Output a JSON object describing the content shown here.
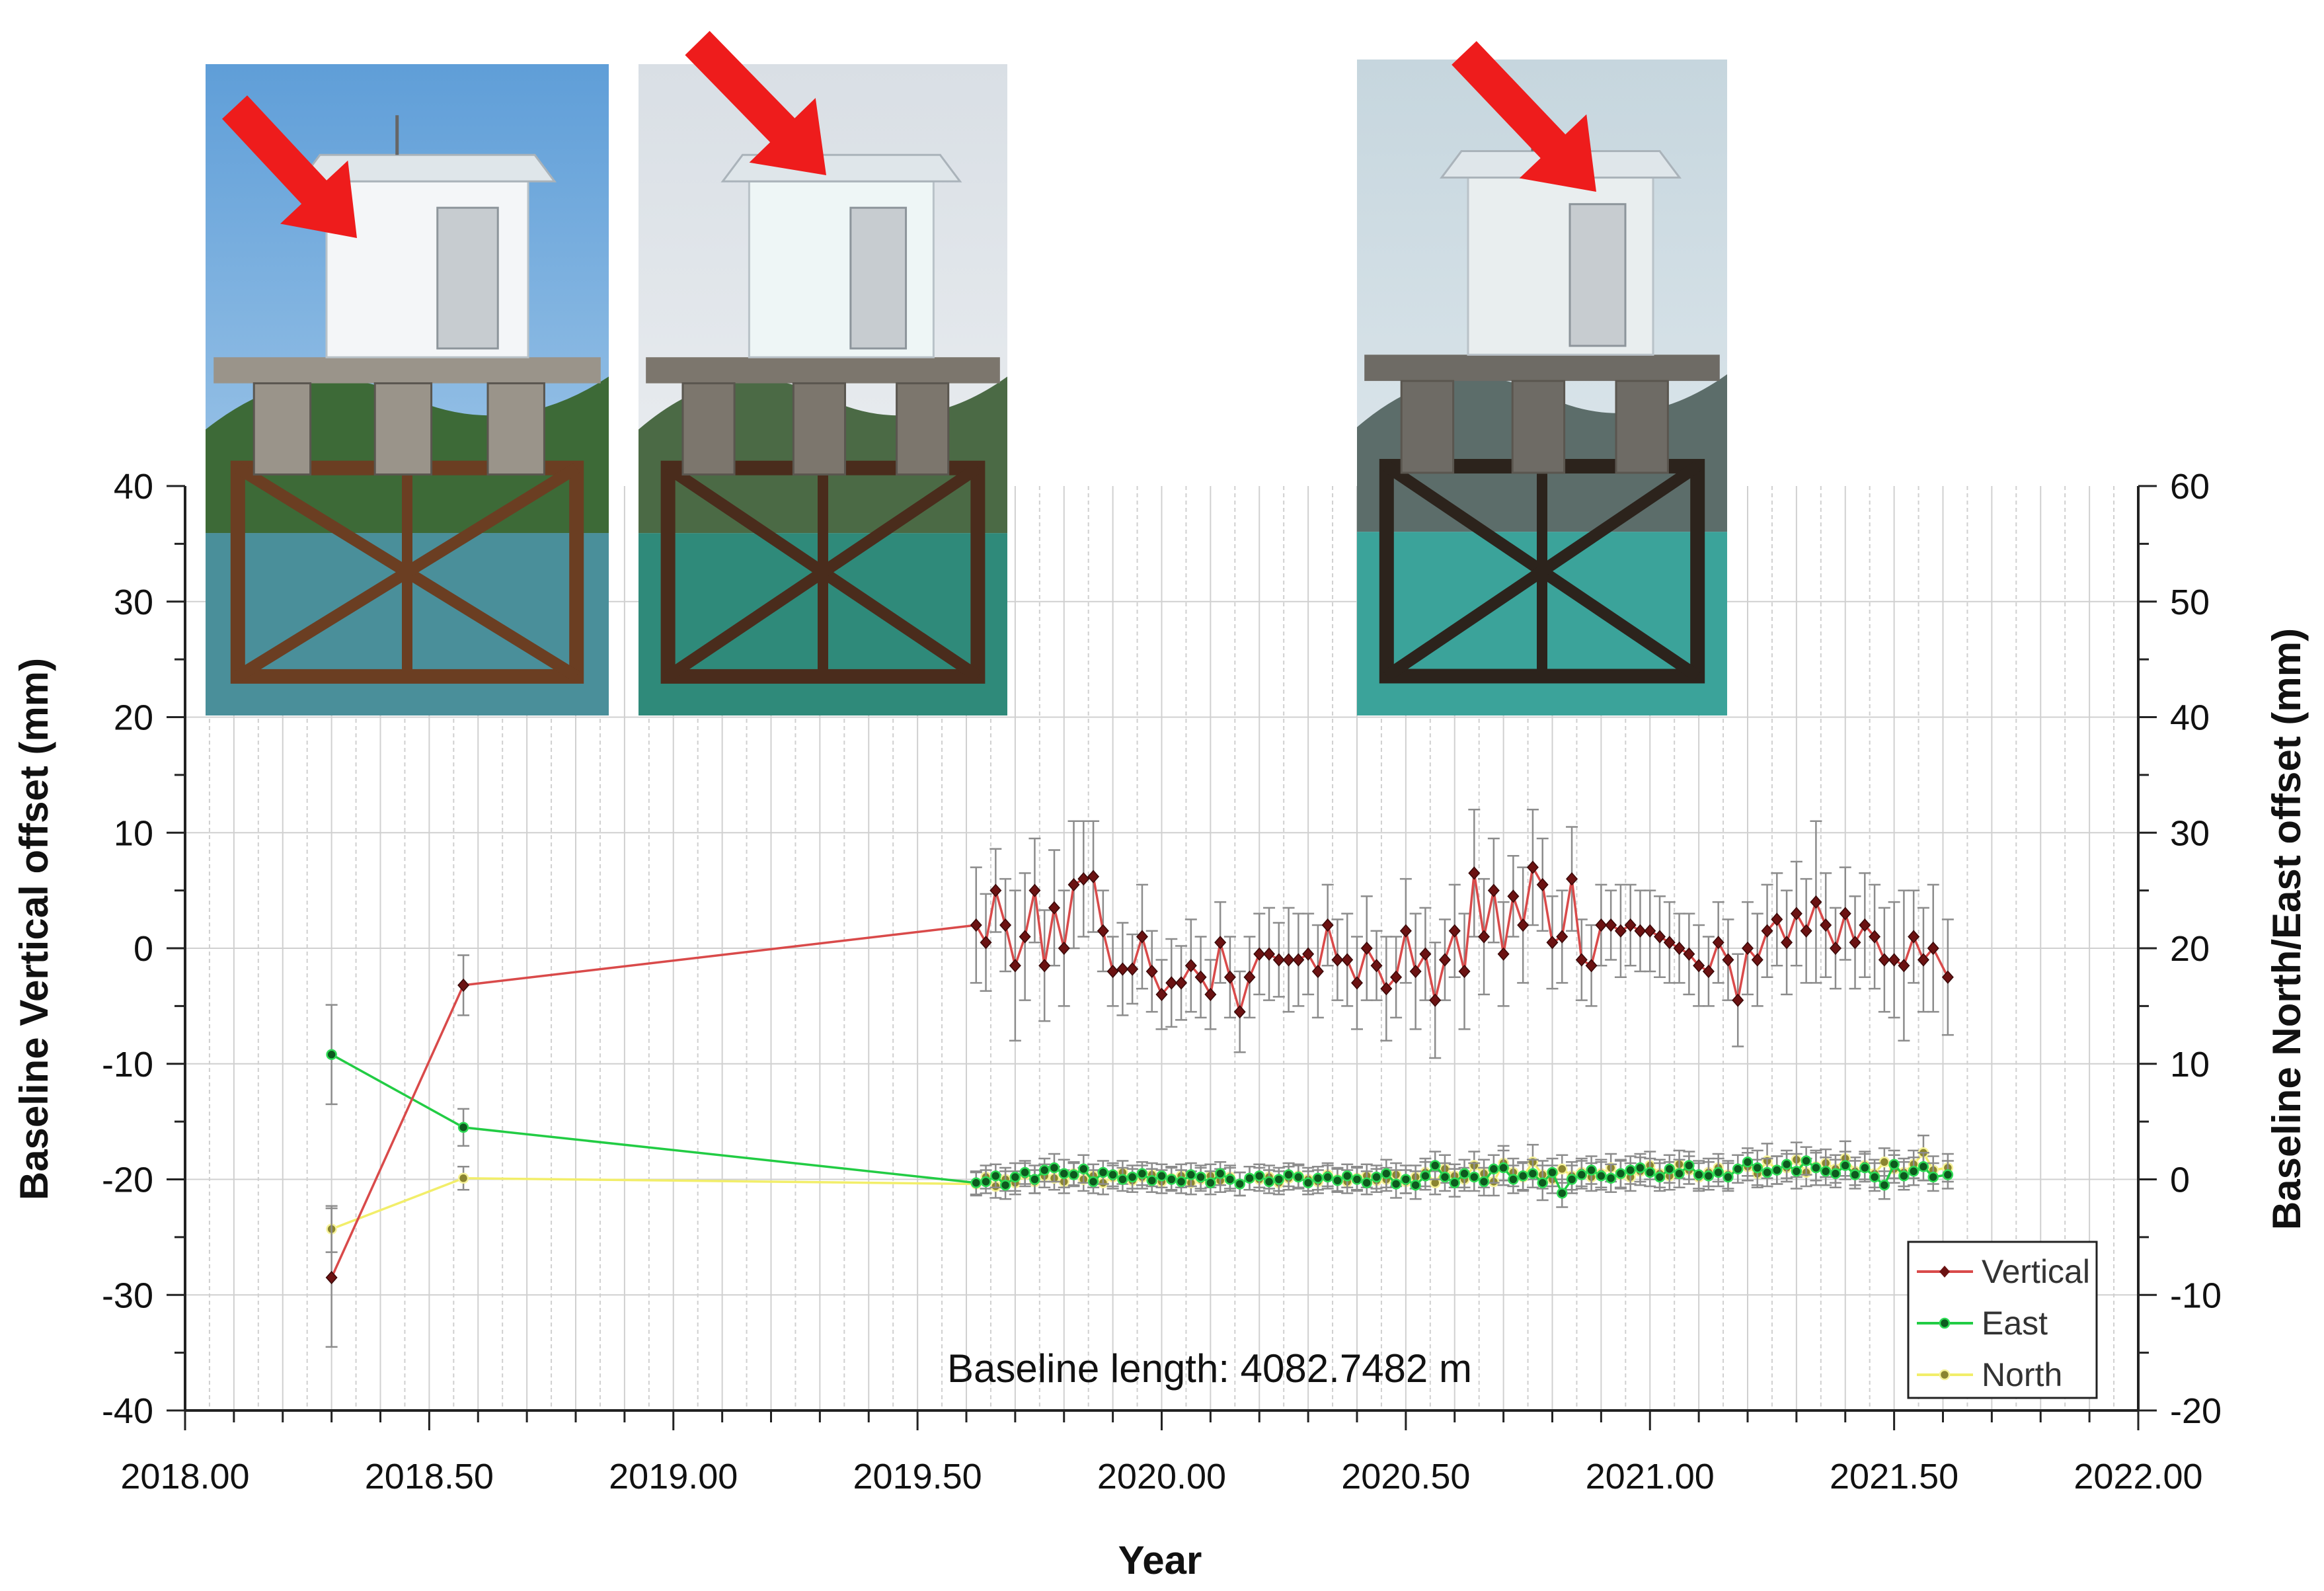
{
  "chart_data": {
    "type": "line",
    "title": "",
    "xlabel": "Year",
    "ylabel": "Baseline Vertical offset (mm)",
    "y2label": "Baseline North/East offset (mm)",
    "xlim": [
      2018.0,
      2022.0
    ],
    "ylim": [
      -40,
      40
    ],
    "y2lim": [
      -20,
      60
    ],
    "x_ticks": [
      "2018.00",
      "2018.50",
      "2019.00",
      "2019.50",
      "2020.00",
      "2020.50",
      "2021.00",
      "2021.50",
      "2022.00"
    ],
    "y_ticks": [
      "40",
      "30",
      "20",
      "10",
      "0",
      "-10",
      "-20",
      "-30",
      "-40"
    ],
    "y2_ticks": [
      "60",
      "50",
      "40",
      "30",
      "20",
      "10",
      "0",
      "-10",
      "-20"
    ],
    "grid": true,
    "legend_position": "bottom-right",
    "annotation": "Baseline length: 4082.7482 m",
    "colors": {
      "vertical": "#d94a4a",
      "vertical_marker": "#6b1212",
      "east": "#22cc44",
      "east_marker": "#0d5a1e",
      "north": "#f2ee6a",
      "north_marker": "#8a8430",
      "error_bar": "#8c8c8c",
      "grid": "#d0d0d0"
    },
    "series": [
      {
        "name": "Vertical",
        "axis": "left",
        "x": [
          2018.3,
          2018.57,
          2019.62,
          2019.64,
          2019.66,
          2019.68,
          2019.7,
          2019.72,
          2019.74,
          2019.76,
          2019.78,
          2019.8,
          2019.82,
          2019.84,
          2019.86,
          2019.88,
          2019.9,
          2019.92,
          2019.94,
          2019.96,
          2019.98,
          2020.0,
          2020.02,
          2020.04,
          2020.06,
          2020.08,
          2020.1,
          2020.12,
          2020.14,
          2020.16,
          2020.18,
          2020.2,
          2020.22,
          2020.24,
          2020.26,
          2020.28,
          2020.3,
          2020.32,
          2020.34,
          2020.36,
          2020.38,
          2020.4,
          2020.42,
          2020.44,
          2020.46,
          2020.48,
          2020.5,
          2020.52,
          2020.54,
          2020.56,
          2020.58,
          2020.6,
          2020.62,
          2020.64,
          2020.66,
          2020.68,
          2020.7,
          2020.72,
          2020.74,
          2020.76,
          2020.78,
          2020.8,
          2020.82,
          2020.84,
          2020.86,
          2020.88,
          2020.9,
          2020.92,
          2020.94,
          2020.96,
          2020.98,
          2021.0,
          2021.02,
          2021.04,
          2021.06,
          2021.08,
          2021.1,
          2021.12,
          2021.14,
          2021.16,
          2021.18,
          2021.2,
          2021.22,
          2021.24,
          2021.26,
          2021.28,
          2021.3,
          2021.32,
          2021.34,
          2021.36,
          2021.38,
          2021.4,
          2021.42,
          2021.44,
          2021.46,
          2021.48,
          2021.5,
          2021.52,
          2021.54,
          2021.56,
          2021.58,
          2021.61
        ],
        "y": [
          -28.5,
          -3.2,
          2.0,
          0.5,
          5.0,
          2.0,
          -1.5,
          1.0,
          5.0,
          -1.5,
          3.5,
          0.0,
          5.5,
          6.0,
          6.2,
          1.5,
          -2.0,
          -1.8,
          -1.8,
          1.0,
          -2.0,
          -4.0,
          -3.0,
          -3.0,
          -1.5,
          -2.5,
          -4.0,
          0.5,
          -2.5,
          -5.5,
          -2.5,
          -0.5,
          -0.5,
          -1.0,
          -1.0,
          -1.0,
          -0.5,
          -2.0,
          2.0,
          -1.0,
          -1.0,
          -3.0,
          0.0,
          -1.5,
          -3.5,
          -2.5,
          1.5,
          -2.0,
          -0.5,
          -4.5,
          -1.0,
          1.5,
          -2.0,
          6.5,
          1.0,
          5.0,
          -0.5,
          4.5,
          2.0,
          7.0,
          5.5,
          0.5,
          1.0,
          6.0,
          -1.0,
          -1.5,
          2.0,
          2.0,
          1.5,
          2.0,
          1.5,
          1.5,
          1.0,
          0.5,
          0.0,
          -0.5,
          -1.5,
          -2.0,
          0.5,
          -1.0,
          -4.5,
          0.0,
          -1.0,
          1.5,
          2.5,
          0.5,
          3.0,
          1.5,
          4.0,
          2.0,
          0.0,
          3.0,
          0.5,
          2.0,
          1.0,
          -1.0,
          -1.0,
          -1.5,
          1.0,
          -1.0,
          0.0,
          -2.5
        ],
        "error": [
          6.0,
          2.6,
          5.0,
          4.2,
          3.6,
          4.0,
          6.5,
          5.5,
          4.5,
          4.8,
          5.0,
          5.0,
          5.5,
          5.0,
          4.8,
          3.5,
          3.0,
          4.0,
          3.0,
          4.5,
          3.5,
          3.0,
          3.8,
          3.2,
          4.0,
          3.5,
          3.0,
          3.5,
          3.5,
          3.5,
          3.5,
          3.5,
          4.0,
          3.2,
          4.5,
          4.0,
          3.5,
          4.0,
          3.5,
          3.5,
          4.0,
          4.0,
          4.5,
          3.0,
          4.5,
          3.5,
          4.5,
          5.0,
          4.0,
          5.0,
          3.5,
          4.0,
          5.0,
          5.5,
          5.0,
          4.5,
          4.5,
          3.5,
          5.0,
          5.0,
          4.0,
          4.0,
          4.0,
          4.5,
          3.5,
          3.5,
          3.5,
          3.0,
          4.0,
          3.5,
          3.5,
          3.5,
          3.5,
          3.5,
          3.0,
          3.5,
          3.5,
          3.0,
          3.5,
          3.5,
          4.0,
          4.0,
          4.0,
          4.0,
          4.0,
          4.5,
          4.5,
          4.5,
          7.0,
          4.5,
          3.5,
          4.0,
          4.0,
          4.5,
          4.5,
          4.5,
          5.0,
          6.5,
          4.0,
          4.5,
          5.5,
          5.0
        ]
      },
      {
        "name": "East",
        "axis": "right",
        "x": [
          2018.3,
          2018.57,
          2019.62,
          2019.64,
          2019.66,
          2019.68,
          2019.7,
          2019.72,
          2019.74,
          2019.76,
          2019.78,
          2019.8,
          2019.82,
          2019.84,
          2019.86,
          2019.88,
          2019.9,
          2019.92,
          2019.94,
          2019.96,
          2019.98,
          2020.0,
          2020.02,
          2020.04,
          2020.06,
          2020.08,
          2020.1,
          2020.12,
          2020.14,
          2020.16,
          2020.18,
          2020.2,
          2020.22,
          2020.24,
          2020.26,
          2020.28,
          2020.3,
          2020.32,
          2020.34,
          2020.36,
          2020.38,
          2020.4,
          2020.42,
          2020.44,
          2020.46,
          2020.48,
          2020.5,
          2020.52,
          2020.54,
          2020.56,
          2020.58,
          2020.6,
          2020.62,
          2020.64,
          2020.66,
          2020.68,
          2020.7,
          2020.72,
          2020.74,
          2020.76,
          2020.78,
          2020.8,
          2020.82,
          2020.84,
          2020.86,
          2020.88,
          2020.9,
          2020.92,
          2020.94,
          2020.96,
          2020.98,
          2021.0,
          2021.02,
          2021.04,
          2021.06,
          2021.08,
          2021.1,
          2021.12,
          2021.14,
          2021.16,
          2021.18,
          2021.2,
          2021.22,
          2021.24,
          2021.26,
          2021.28,
          2021.3,
          2021.32,
          2021.34,
          2021.36,
          2021.38,
          2021.4,
          2021.42,
          2021.44,
          2021.46,
          2021.48,
          2021.5,
          2021.52,
          2021.54,
          2021.56,
          2021.58,
          2021.61
        ],
        "y": [
          10.8,
          4.5,
          -0.3,
          -0.2,
          0.3,
          -0.5,
          0.2,
          0.6,
          0.0,
          0.8,
          1.0,
          0.5,
          0.4,
          0.9,
          -0.2,
          0.6,
          0.4,
          0.0,
          0.2,
          0.5,
          -0.1,
          0.3,
          0.0,
          -0.2,
          0.4,
          0.2,
          -0.3,
          0.5,
          0.0,
          -0.4,
          0.1,
          0.3,
          -0.2,
          0.0,
          0.4,
          0.2,
          -0.3,
          0.1,
          0.2,
          -0.1,
          0.3,
          0.0,
          -0.3,
          0.2,
          0.5,
          -0.4,
          0.0,
          -0.5,
          0.3,
          1.2,
          0.2,
          -0.3,
          0.5,
          0.2,
          -0.2,
          0.9,
          1.0,
          0.0,
          0.3,
          0.5,
          -0.3,
          0.6,
          -1.2,
          0.0,
          0.4,
          0.8,
          0.3,
          0.1,
          0.5,
          0.8,
          1.0,
          0.6,
          0.2,
          0.9,
          0.5,
          1.2,
          0.4,
          0.3,
          0.6,
          0.2,
          0.9,
          1.5,
          1.0,
          0.6,
          0.8,
          1.3,
          0.7,
          1.6,
          1.0,
          0.7,
          0.5,
          1.2,
          0.4,
          1.0,
          0.2,
          -0.5,
          1.3,
          0.3,
          0.7,
          1.1,
          0.2,
          0.4
        ],
        "error": [
          4.3,
          1.6,
          1.0,
          1.0,
          1.0,
          1.2,
          1.2,
          1.0,
          1.2,
          1.0,
          1.2,
          1.2,
          1.0,
          1.2,
          1.0,
          1.0,
          1.0,
          1.0,
          1.0,
          1.0,
          1.0,
          1.0,
          1.0,
          1.0,
          1.0,
          1.0,
          1.0,
          1.0,
          1.0,
          1.0,
          1.0,
          1.0,
          1.0,
          1.0,
          1.0,
          1.0,
          1.0,
          1.0,
          1.0,
          1.0,
          1.0,
          1.0,
          1.0,
          1.0,
          1.2,
          1.2,
          1.2,
          1.2,
          1.2,
          1.2,
          1.2,
          1.2,
          1.2,
          1.2,
          1.2,
          1.2,
          1.5,
          1.2,
          1.2,
          1.2,
          1.5,
          1.2,
          1.2,
          1.2,
          1.2,
          1.2,
          1.2,
          1.2,
          1.2,
          1.2,
          1.2,
          1.2,
          1.2,
          1.2,
          1.2,
          1.2,
          1.2,
          1.2,
          1.2,
          1.2,
          1.2,
          1.2,
          1.5,
          1.2,
          1.2,
          1.2,
          1.5,
          1.2,
          1.5,
          1.2,
          1.2,
          1.2,
          1.2,
          1.2,
          1.2,
          1.2,
          1.2,
          1.2,
          1.2,
          1.2,
          1.2,
          1.2
        ]
      },
      {
        "name": "North",
        "axis": "right",
        "x": [
          2018.3,
          2018.57,
          2019.62,
          2019.64,
          2019.66,
          2019.68,
          2019.7,
          2019.72,
          2019.74,
          2019.76,
          2019.78,
          2019.8,
          2019.82,
          2019.84,
          2019.86,
          2019.88,
          2019.9,
          2019.92,
          2019.94,
          2019.96,
          2019.98,
          2020.0,
          2020.02,
          2020.04,
          2020.06,
          2020.08,
          2020.1,
          2020.12,
          2020.14,
          2020.16,
          2020.18,
          2020.2,
          2020.22,
          2020.24,
          2020.26,
          2020.28,
          2020.3,
          2020.32,
          2020.34,
          2020.36,
          2020.38,
          2020.4,
          2020.42,
          2020.44,
          2020.46,
          2020.48,
          2020.5,
          2020.52,
          2020.54,
          2020.56,
          2020.58,
          2020.6,
          2020.62,
          2020.64,
          2020.66,
          2020.68,
          2020.7,
          2020.72,
          2020.74,
          2020.76,
          2020.78,
          2020.8,
          2020.82,
          2020.84,
          2020.86,
          2020.88,
          2020.9,
          2020.92,
          2020.94,
          2020.96,
          2020.98,
          2021.0,
          2021.02,
          2021.04,
          2021.06,
          2021.08,
          2021.1,
          2021.12,
          2021.14,
          2021.16,
          2021.18,
          2021.2,
          2021.22,
          2021.24,
          2021.26,
          2021.28,
          2021.3,
          2021.32,
          2021.34,
          2021.36,
          2021.38,
          2021.4,
          2021.42,
          2021.44,
          2021.46,
          2021.48,
          2021.5,
          2021.52,
          2021.54,
          2021.56,
          2021.58,
          2021.61
        ],
        "y": [
          -4.3,
          0.1,
          -0.4,
          0.2,
          -0.6,
          0.0,
          -0.3,
          0.4,
          -0.2,
          0.3,
          0.1,
          -0.2,
          0.5,
          0.0,
          0.3,
          -0.3,
          0.2,
          0.6,
          -0.1,
          0.2,
          0.4,
          -0.2,
          0.1,
          0.3,
          -0.3,
          0.0,
          0.3,
          -0.1,
          0.2,
          -0.4,
          0.1,
          0.0,
          0.2,
          -0.3,
          0.1,
          0.3,
          0.0,
          -0.2,
          0.4,
          0.0,
          -0.2,
          0.1,
          0.3,
          -0.1,
          0.0,
          0.4,
          -0.2,
          0.2,
          0.6,
          -0.3,
          0.9,
          0.3,
          0.0,
          1.2,
          0.5,
          -0.2,
          1.4,
          0.6,
          0.2,
          1.5,
          0.4,
          0.0,
          0.9,
          0.3,
          0.6,
          0.2,
          0.5,
          1.0,
          0.4,
          0.2,
          0.7,
          1.2,
          0.5,
          0.3,
          1.3,
          0.8,
          0.2,
          0.6,
          1.0,
          0.4,
          0.9,
          1.1,
          0.5,
          1.6,
          0.8,
          1.0,
          1.7,
          0.6,
          1.1,
          1.4,
          0.9,
          1.8,
          0.7,
          1.2,
          0.5,
          1.5,
          0.9,
          0.6,
          1.3,
          2.3,
          0.8,
          1.0
        ],
        "error": [
          2.0,
          1.0,
          1.0,
          1.0,
          1.0,
          1.0,
          1.0,
          1.0,
          1.0,
          1.0,
          1.0,
          1.0,
          1.0,
          1.0,
          1.0,
          1.0,
          1.0,
          1.0,
          1.0,
          1.0,
          1.0,
          1.0,
          1.0,
          1.0,
          1.0,
          1.0,
          1.0,
          1.0,
          1.0,
          1.0,
          1.0,
          1.0,
          1.0,
          1.0,
          1.0,
          1.0,
          1.0,
          1.0,
          1.0,
          1.0,
          1.0,
          1.0,
          1.0,
          1.0,
          1.0,
          1.0,
          1.0,
          1.0,
          1.2,
          1.0,
          1.2,
          1.0,
          1.0,
          1.2,
          1.2,
          1.2,
          1.5,
          1.2,
          1.2,
          1.5,
          1.2,
          1.2,
          1.2,
          1.2,
          1.2,
          1.2,
          1.2,
          1.2,
          1.2,
          1.2,
          1.2,
          1.2,
          1.2,
          1.2,
          1.2,
          1.2,
          1.2,
          1.2,
          1.2,
          1.2,
          1.2,
          1.2,
          1.2,
          1.5,
          1.2,
          1.2,
          1.5,
          1.2,
          1.2,
          1.2,
          1.2,
          1.5,
          1.2,
          1.2,
          1.2,
          1.2,
          1.2,
          1.2,
          1.2,
          1.5,
          1.2,
          1.2
        ]
      }
    ]
  },
  "photos": [
    {
      "icon": "pier-station-photo-sunny",
      "arrow": "red-arrow-icon",
      "palette": {
        "sky": "#5f9ed8",
        "sky2": "#b8d6ee",
        "hills": "#3d6a37",
        "water": "#4a8f9a",
        "steel": "#6b3e22",
        "concrete": "#9a948a",
        "hut": "#f4f6f8"
      }
    },
    {
      "icon": "pier-station-photo-overcast",
      "arrow": "red-arrow-icon",
      "palette": {
        "sky": "#d9dfe5",
        "sky2": "#f1f3f5",
        "hills": "#4b6a45",
        "water": "#2f8a7a",
        "steel": "#4a2c1c",
        "concrete": "#7c766d",
        "hut": "#eef6f6"
      }
    },
    {
      "icon": "pier-station-photo-later",
      "arrow": "red-arrow-icon",
      "palette": {
        "sky": "#c6d6de",
        "sky2": "#e6edf1",
        "hills": "#5c6d6a",
        "water": "#3ba39a",
        "steel": "#2c231c",
        "concrete": "#6e6b65",
        "hut": "#e9eeef"
      }
    }
  ]
}
